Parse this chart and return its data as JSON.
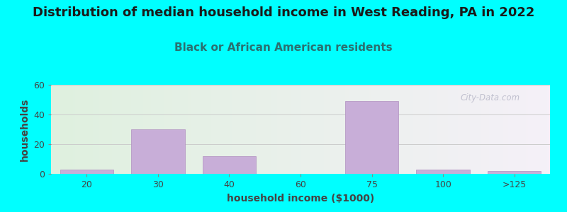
{
  "title": "Distribution of median household income in West Reading, PA in 2022",
  "subtitle": "Black or African American residents",
  "xlabel": "household income ($1000)",
  "ylabel": "households",
  "background_color": "#00FFFF",
  "bar_color": "#c8aed8",
  "bar_edge_color": "#b090c0",
  "categories": [
    "20",
    "30",
    "40",
    "60",
    "75",
    "100",
    ">125"
  ],
  "values": [
    3,
    30,
    12,
    0,
    49,
    3,
    2
  ],
  "bar_positions": [
    1,
    2,
    3,
    4,
    5,
    6,
    7
  ],
  "ylim": [
    0,
    60
  ],
  "yticks": [
    0,
    20,
    40,
    60
  ],
  "title_fontsize": 13,
  "subtitle_fontsize": 11,
  "axis_label_fontsize": 10,
  "tick_fontsize": 9,
  "watermark_text": "City-Data.com",
  "title_color": "#1a1a1a",
  "subtitle_color": "#2a7070",
  "tick_color": "#444444",
  "label_color": "#444444",
  "grid_color": "#cccccc",
  "plot_bg_left": "#dff0df",
  "plot_bg_right": "#f5f0f8"
}
